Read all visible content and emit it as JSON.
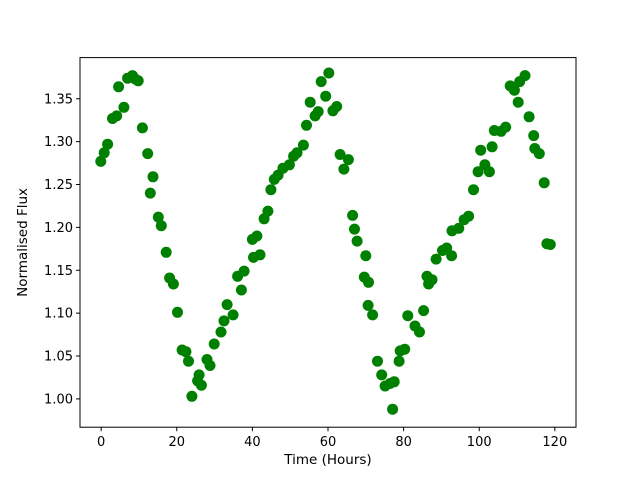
{
  "figure": {
    "background": "#ffffff",
    "plot_background": "#ffffff",
    "spine_color": "#000000"
  },
  "chart_data": {
    "type": "scatter",
    "title": "",
    "xlabel": "Time (Hours)",
    "ylabel": "Normalised Flux",
    "legend": null,
    "grid": false,
    "marker": "circle",
    "marker_color": "#008000",
    "marker_radius_px": 5.5,
    "xlim": [
      -5.6,
      125.6
    ],
    "ylim": [
      0.967,
      1.398
    ],
    "xticks": [
      0,
      20,
      40,
      60,
      80,
      100,
      120
    ],
    "yticks": [
      1.0,
      1.05,
      1.1,
      1.15,
      1.2,
      1.25,
      1.3,
      1.35
    ],
    "x_units": "hours",
    "series_name": "normalised-flux-light-curve",
    "points": [
      [
        -0.1,
        1.277
      ],
      [
        0.8,
        1.287
      ],
      [
        1.7,
        1.297
      ],
      [
        3.0,
        1.327
      ],
      [
        4.1,
        1.33
      ],
      [
        4.6,
        1.364
      ],
      [
        6.0,
        1.34
      ],
      [
        7.0,
        1.374
      ],
      [
        8.3,
        1.377
      ],
      [
        9.0,
        1.373
      ],
      [
        9.8,
        1.371
      ],
      [
        10.9,
        1.316
      ],
      [
        12.3,
        1.286
      ],
      [
        13.0,
        1.24
      ],
      [
        13.7,
        1.259
      ],
      [
        15.1,
        1.212
      ],
      [
        15.9,
        1.202
      ],
      [
        17.2,
        1.171
      ],
      [
        18.1,
        1.141
      ],
      [
        19.1,
        1.134
      ],
      [
        20.2,
        1.101
      ],
      [
        21.4,
        1.057
      ],
      [
        22.4,
        1.055
      ],
      [
        23.1,
        1.044
      ],
      [
        24.0,
        1.003
      ],
      [
        25.5,
        1.021
      ],
      [
        25.9,
        1.028
      ],
      [
        26.5,
        1.016
      ],
      [
        28.0,
        1.046
      ],
      [
        28.8,
        1.039
      ],
      [
        29.9,
        1.064
      ],
      [
        31.7,
        1.078
      ],
      [
        32.5,
        1.091
      ],
      [
        33.3,
        1.11
      ],
      [
        34.9,
        1.098
      ],
      [
        36.1,
        1.143
      ],
      [
        37.1,
        1.127
      ],
      [
        37.8,
        1.149
      ],
      [
        40.0,
        1.186
      ],
      [
        40.3,
        1.165
      ],
      [
        41.2,
        1.19
      ],
      [
        42.0,
        1.168
      ],
      [
        43.1,
        1.21
      ],
      [
        44.1,
        1.219
      ],
      [
        44.9,
        1.244
      ],
      [
        45.8,
        1.256
      ],
      [
        46.8,
        1.261
      ],
      [
        48.1,
        1.269
      ],
      [
        49.8,
        1.273
      ],
      [
        50.9,
        1.283
      ],
      [
        51.8,
        1.287
      ],
      [
        53.5,
        1.296
      ],
      [
        54.3,
        1.319
      ],
      [
        55.3,
        1.346
      ],
      [
        56.6,
        1.33
      ],
      [
        57.4,
        1.335
      ],
      [
        58.2,
        1.37
      ],
      [
        59.4,
        1.353
      ],
      [
        60.2,
        1.38
      ],
      [
        61.3,
        1.336
      ],
      [
        62.3,
        1.341
      ],
      [
        63.2,
        1.285
      ],
      [
        64.2,
        1.268
      ],
      [
        65.4,
        1.279
      ],
      [
        66.5,
        1.214
      ],
      [
        67.0,
        1.198
      ],
      [
        67.7,
        1.184
      ],
      [
        69.6,
        1.142
      ],
      [
        70.0,
        1.167
      ],
      [
        70.6,
        1.109
      ],
      [
        70.7,
        1.136
      ],
      [
        71.8,
        1.098
      ],
      [
        73.1,
        1.044
      ],
      [
        74.2,
        1.028
      ],
      [
        75.1,
        1.015
      ],
      [
        76.4,
        1.018
      ],
      [
        77.1,
        0.988
      ],
      [
        77.5,
        1.02
      ],
      [
        78.8,
        1.044
      ],
      [
        79.1,
        1.056
      ],
      [
        80.3,
        1.058
      ],
      [
        81.1,
        1.097
      ],
      [
        83.0,
        1.085
      ],
      [
        84.2,
        1.078
      ],
      [
        85.3,
        1.103
      ],
      [
        86.2,
        1.143
      ],
      [
        86.6,
        1.134
      ],
      [
        87.5,
        1.139
      ],
      [
        88.6,
        1.163
      ],
      [
        90.3,
        1.173
      ],
      [
        91.4,
        1.176
      ],
      [
        92.7,
        1.167
      ],
      [
        92.8,
        1.196
      ],
      [
        94.6,
        1.199
      ],
      [
        96.0,
        1.209
      ],
      [
        97.2,
        1.213
      ],
      [
        98.5,
        1.244
      ],
      [
        99.7,
        1.265
      ],
      [
        100.4,
        1.29
      ],
      [
        101.5,
        1.273
      ],
      [
        102.7,
        1.265
      ],
      [
        103.4,
        1.294
      ],
      [
        104.0,
        1.313
      ],
      [
        105.8,
        1.312
      ],
      [
        107.0,
        1.317
      ],
      [
        108.2,
        1.365
      ],
      [
        109.3,
        1.36
      ],
      [
        110.3,
        1.346
      ],
      [
        110.7,
        1.37
      ],
      [
        112.1,
        1.377
      ],
      [
        113.2,
        1.329
      ],
      [
        114.4,
        1.307
      ],
      [
        114.7,
        1.292
      ],
      [
        115.9,
        1.286
      ],
      [
        117.2,
        1.252
      ],
      [
        117.9,
        1.181
      ],
      [
        118.8,
        1.18
      ]
    ]
  }
}
